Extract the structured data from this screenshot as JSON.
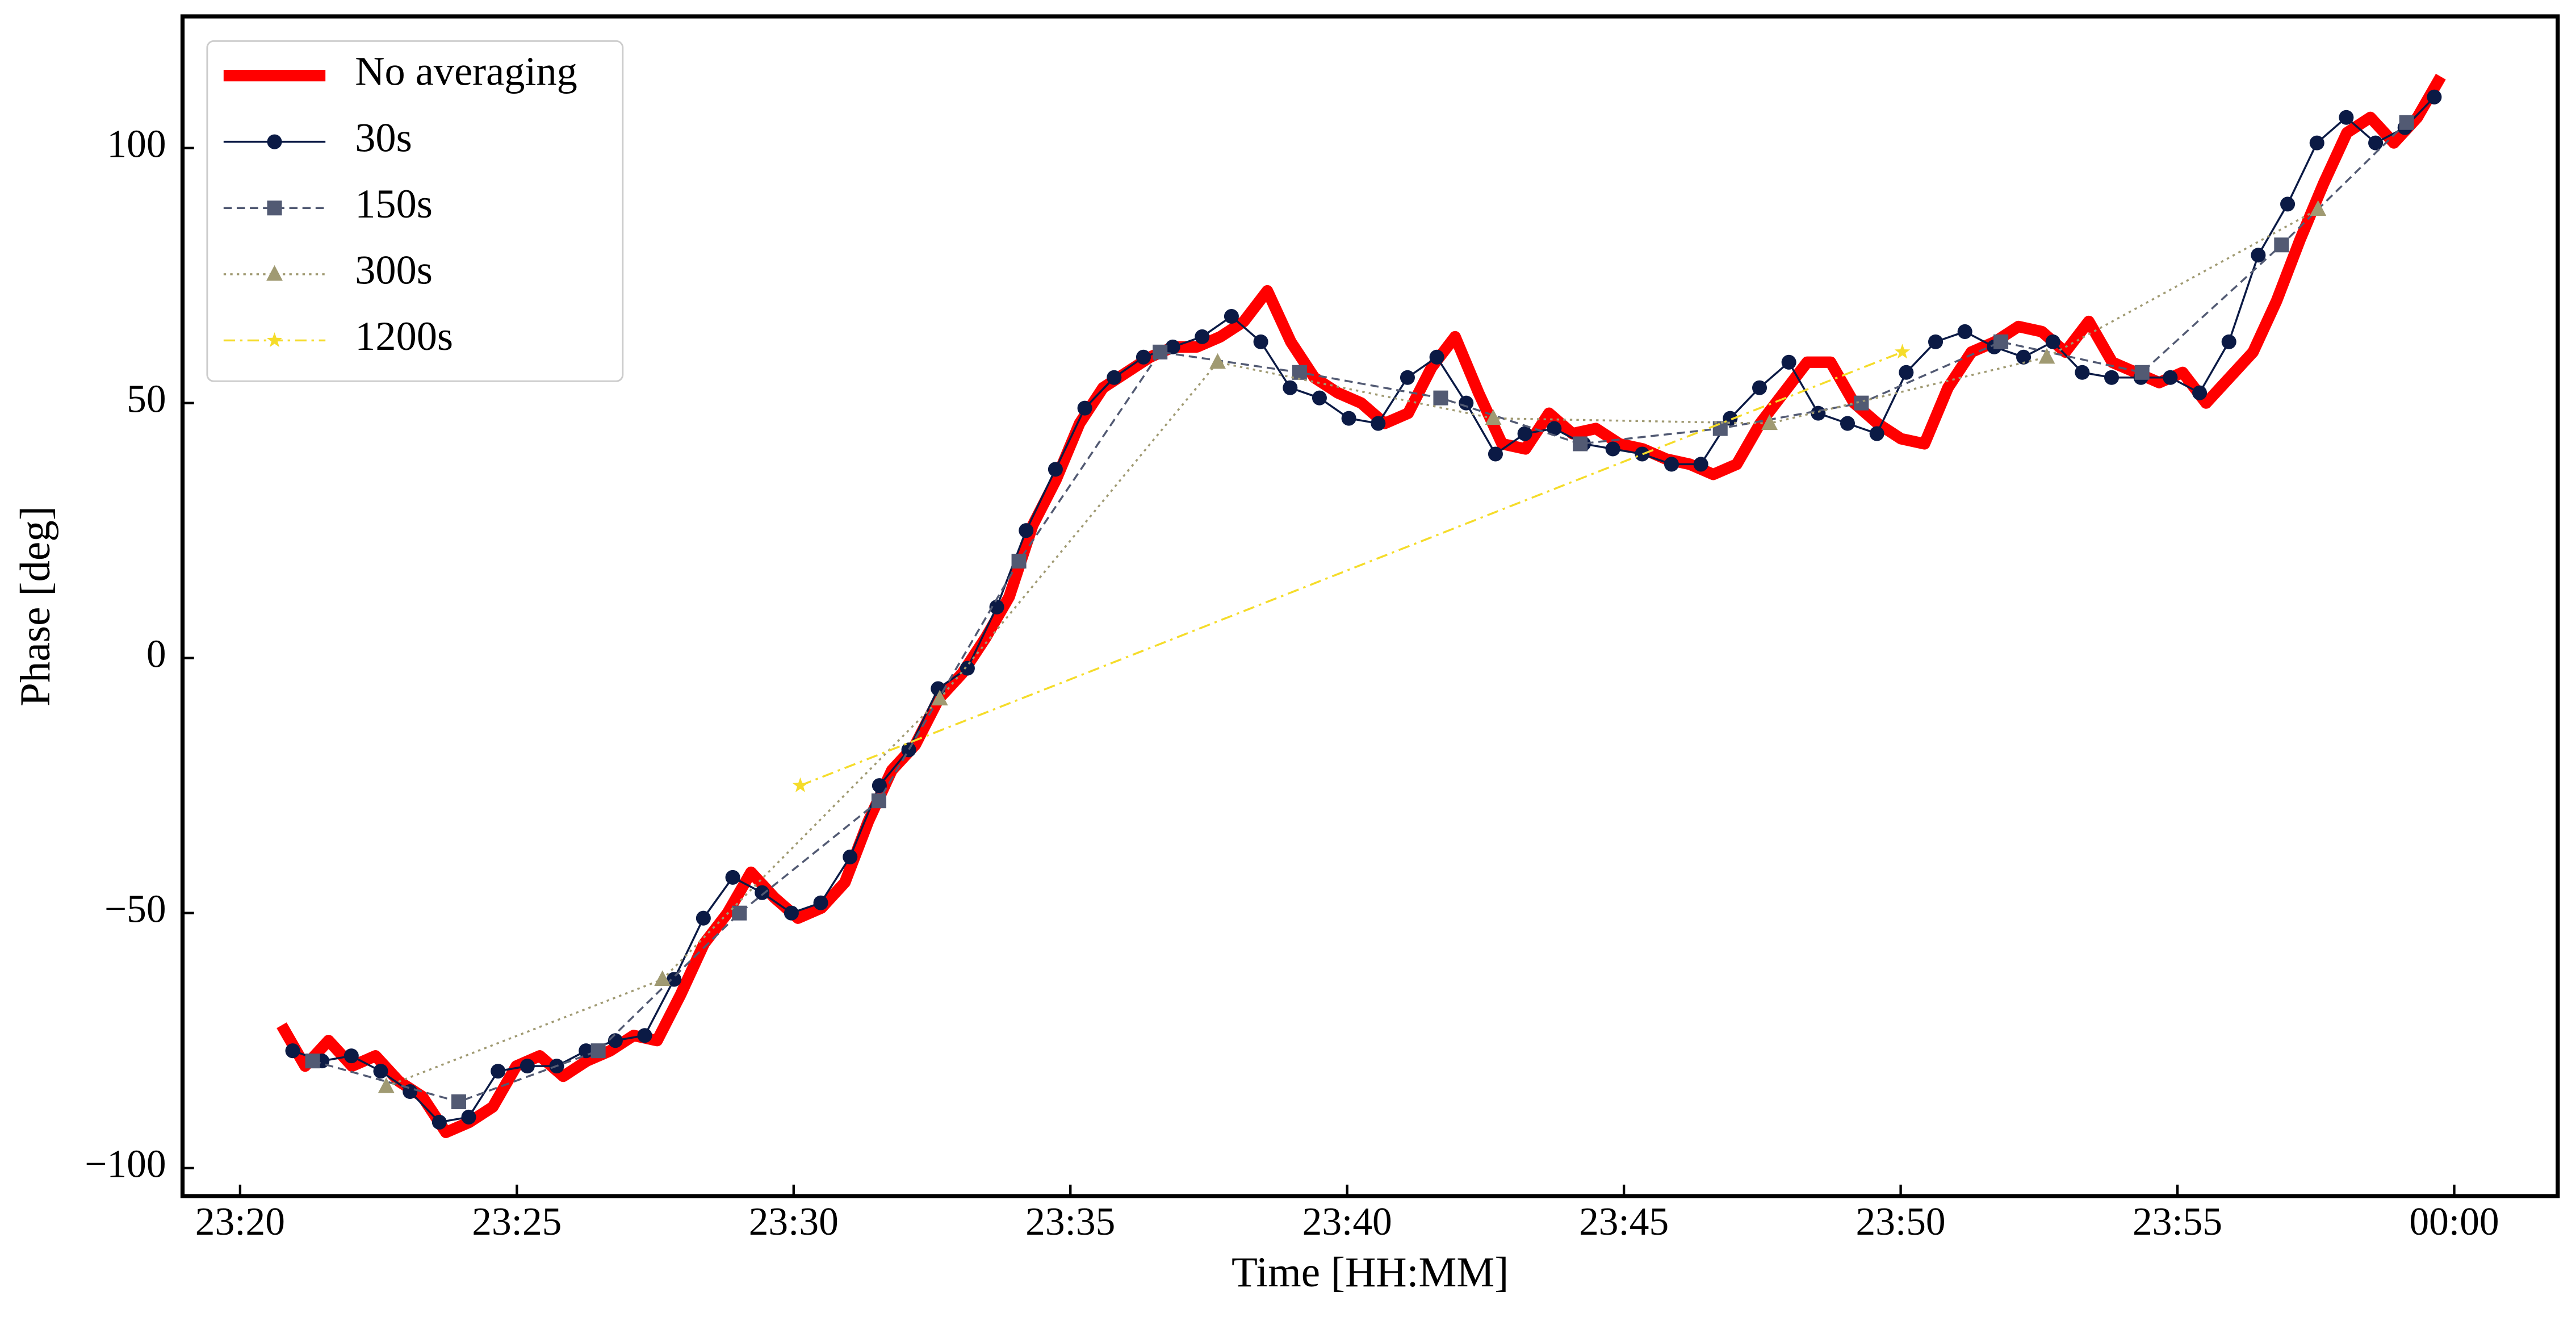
{
  "chart_data": {
    "type": "line",
    "x_label": "Time [HH:MM]",
    "y_label": "Phase [deg]",
    "xlim": [
      -1.04,
      41.87
    ],
    "ylim": [
      -105.5,
      125.8
    ],
    "xticks": [
      {
        "value": 0,
        "label": "23:20"
      },
      {
        "value": 5,
        "label": "23:25"
      },
      {
        "value": 10,
        "label": "23:30"
      },
      {
        "value": 15,
        "label": "23:35"
      },
      {
        "value": 20,
        "label": "23:40"
      },
      {
        "value": 25,
        "label": "23:45"
      },
      {
        "value": 30,
        "label": "23:50"
      },
      {
        "value": 35,
        "label": "23:55"
      },
      {
        "value": 40,
        "label": "00:00"
      }
    ],
    "yticks": [
      {
        "value": -100,
        "label": "−100"
      },
      {
        "value": -50,
        "label": "−50"
      },
      0,
      50,
      100
    ],
    "legend": "upper left",
    "series": [
      {
        "name": "No averaging",
        "color": "#ff0000",
        "linestyle": "solid",
        "marker": "none",
        "x": [
          0.75,
          1.174,
          1.598,
          2.022,
          2.446,
          2.87,
          3.294,
          3.718,
          4.142,
          4.566,
          4.99,
          5.414,
          5.838,
          6.262,
          6.686,
          7.11,
          7.534,
          7.958,
          8.382,
          8.806,
          9.23,
          9.654,
          10.078,
          10.502,
          10.926,
          11.35,
          11.774,
          12.198,
          12.622,
          13.046,
          13.47,
          13.894,
          14.318,
          14.742,
          15.166,
          15.59,
          16.014,
          16.438,
          16.862,
          17.286,
          17.71,
          18.134,
          18.558,
          18.982,
          19.406,
          19.83,
          20.254,
          20.678,
          21.102,
          21.526,
          21.95,
          22.374,
          22.798,
          23.222,
          23.646,
          24.07,
          24.494,
          24.918,
          25.342,
          25.766,
          26.19,
          26.614,
          27.038,
          27.462,
          27.886,
          28.31,
          28.734,
          29.158,
          29.582,
          30.006,
          30.43,
          30.854,
          31.278,
          31.702,
          32.126,
          32.55,
          32.974,
          33.398,
          33.822,
          34.246,
          34.67,
          35.094,
          35.518,
          35.942,
          36.366,
          36.79,
          37.214,
          37.638,
          38.062,
          38.486,
          38.91,
          39.334,
          39.758
        ],
        "values": [
          -72,
          -80,
          -75,
          -80,
          -78,
          -83,
          -86,
          -93,
          -91,
          -88,
          -80,
          -78,
          -82,
          -79,
          -77,
          -74,
          -75,
          -66,
          -56,
          -50,
          -42,
          -47,
          -51,
          -49,
          -44,
          -32,
          -22,
          -17,
          -8,
          -3,
          4,
          12,
          26,
          35,
          46,
          53,
          56,
          59,
          61,
          61,
          63,
          66,
          72,
          62,
          55,
          52,
          50,
          46,
          48,
          57,
          63,
          52,
          42,
          41,
          48,
          44,
          45,
          42,
          41,
          39,
          38,
          36,
          38,
          46,
          52,
          58,
          58,
          50,
          46,
          43,
          42,
          53,
          60,
          62,
          65,
          64,
          60,
          66,
          58,
          56,
          54,
          56,
          50,
          55,
          60,
          70,
          82,
          93,
          103,
          106,
          101,
          106,
          114
        ]
      },
      {
        "name": "30s",
        "color": "#0b1a45",
        "linestyle": "solid",
        "marker": "circle",
        "x": [
          0.95,
          1.48,
          2.01,
          2.54,
          3.07,
          3.6,
          4.13,
          4.66,
          5.19,
          5.72,
          6.25,
          6.78,
          7.31,
          7.84,
          8.37,
          8.9,
          9.43,
          9.96,
          10.49,
          11.02,
          11.55,
          12.08,
          12.61,
          13.14,
          13.67,
          14.2,
          14.73,
          15.26,
          15.79,
          16.32,
          16.85,
          17.38,
          17.91,
          18.44,
          18.97,
          19.5,
          20.03,
          20.56,
          21.09,
          21.62,
          22.15,
          22.68,
          23.21,
          23.74,
          24.27,
          24.8,
          25.33,
          25.86,
          26.39,
          26.92,
          27.45,
          27.98,
          28.51,
          29.04,
          29.57,
          30.1,
          30.63,
          31.16,
          31.69,
          32.22,
          32.75,
          33.28,
          33.81,
          34.34,
          34.87,
          35.4,
          35.93,
          36.46,
          36.99,
          37.52,
          38.05,
          38.58,
          39.11,
          39.64
        ],
        "values": [
          -77,
          -79,
          -78,
          -81,
          -85,
          -91,
          -90,
          -81,
          -80,
          -80,
          -77,
          -75,
          -74,
          -63,
          -51,
          -43,
          -46,
          -50,
          -48,
          -39,
          -25,
          -18,
          -6,
          -2,
          10,
          25,
          37,
          49,
          55,
          59,
          61,
          63,
          67,
          62,
          53,
          51,
          47,
          46,
          55,
          59,
          50,
          40,
          44,
          45,
          42,
          41,
          40,
          38,
          38,
          47,
          53,
          58,
          48,
          46,
          44,
          56,
          62,
          64,
          61,
          59,
          62,
          56,
          55,
          55,
          55,
          52,
          62,
          79,
          89,
          101,
          106,
          101,
          104,
          110
        ]
      },
      {
        "name": "150s",
        "color": "#525a73",
        "linestyle": "dashed",
        "marker": "square",
        "x": [
          1.31,
          3.95,
          6.47,
          9.02,
          11.54,
          14.07,
          16.62,
          19.14,
          21.69,
          24.21,
          26.74,
          29.29,
          31.81,
          34.36,
          36.88,
          39.14
        ],
        "values": [
          -79,
          -87,
          -77,
          -50,
          -28,
          19,
          60,
          56,
          51,
          42,
          45,
          50,
          62,
          56,
          81,
          105
        ]
      },
      {
        "name": "300s",
        "color": "#a09a72",
        "linestyle": "dotted",
        "marker": "triangle",
        "x": [
          2.64,
          7.63,
          12.64,
          17.66,
          22.64,
          27.63,
          32.64,
          37.54
        ],
        "values": [
          -84,
          -63,
          -8,
          58,
          47,
          46,
          59,
          88
        ]
      },
      {
        "name": "1200s",
        "color": "#f5dc2a",
        "linestyle": "dashdot",
        "marker": "star",
        "x": [
          10.12,
          30.03
        ],
        "values": [
          -25,
          60
        ]
      }
    ]
  }
}
